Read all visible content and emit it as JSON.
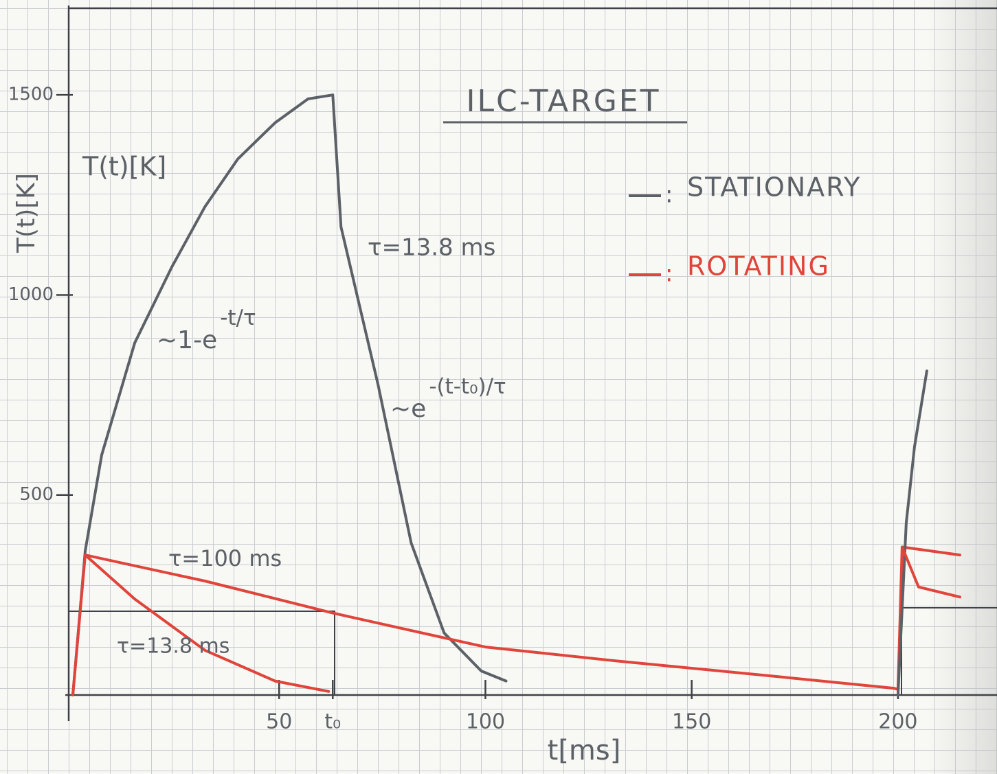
{
  "chart_data": {
    "type": "line",
    "title": "ILC-TARGET",
    "x_label": "t[ms]",
    "y_label": "T(t)[K]",
    "xlim": [
      -1,
      224
    ],
    "ylim": [
      0,
      1720
    ],
    "xticks": [
      50,
      {
        "value": 63,
        "label": "t₀"
      },
      100,
      150,
      200
    ],
    "yticks": [
      500,
      1000,
      1500
    ],
    "grid": false,
    "legend_separator": ":",
    "series": [
      {
        "name": "STATIONARY",
        "color": "#5c6168",
        "x": [
          0,
          3,
          7,
          15,
          24,
          32,
          40,
          49,
          57,
          63,
          65,
          74,
          82,
          90,
          99,
          105
        ],
        "values": [
          0,
          360,
          600,
          880,
          1070,
          1220,
          1340,
          1430,
          1490,
          1500,
          1170,
          775,
          380,
          155,
          60,
          35
        ]
      },
      {
        "name": "ROTATING",
        "color": "#e0443a",
        "x": [
          0,
          3,
          32,
          63,
          100,
          132,
          165,
          199,
          200,
          201,
          215
        ],
        "values": [
          0,
          350,
          285,
          205,
          120,
          85,
          52,
          17,
          14,
          370,
          350
        ]
      },
      {
        "color": "#e0443a",
        "x": [
          3,
          15,
          32,
          49,
          62
        ],
        "values": [
          350,
          240,
          112,
          35,
          9
        ]
      },
      {
        "color": "#5c6168",
        "x": [
          200,
          202,
          204,
          207
        ],
        "values": [
          0,
          430,
          620,
          810
        ]
      },
      {
        "color": "#e0443a",
        "x": [
          201,
          205,
          215
        ],
        "values": [
          370,
          270,
          245
        ]
      }
    ],
    "annotations": [
      {
        "text": "T(t)[K]"
      },
      {
        "text": "τ=13.8 ms"
      },
      {
        "text": "~1-e",
        "exponent": "-t/τ"
      },
      {
        "text": "~e",
        "exponent": "-(t-t₀)/τ"
      },
      {
        "text": "τ=100 ms"
      },
      {
        "text": "τ=13.8 ms"
      }
    ]
  }
}
